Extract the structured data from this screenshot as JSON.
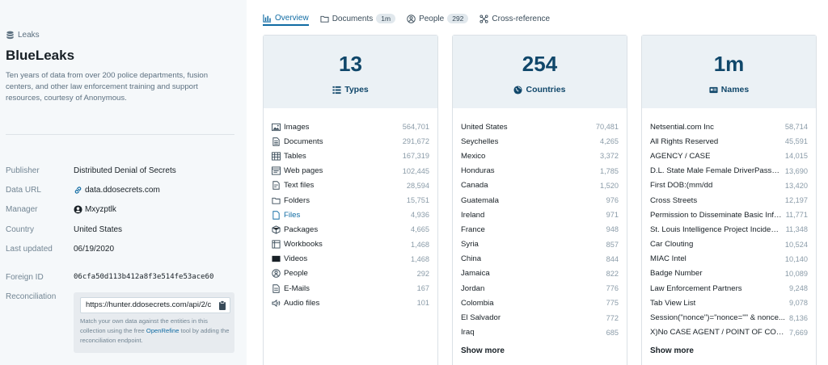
{
  "sidebar": {
    "breadcrumb": "Leaks",
    "title": "BlueLeaks",
    "description": "Ten years of data from over 200 police departments, fusion centers, and other law enforcement training and support resources, courtesy of Anonymous.",
    "meta": {
      "publisher_label": "Publisher",
      "publisher_value": "Distributed Denial of Secrets",
      "url_label": "Data URL",
      "url_value": "data.ddosecrets.com",
      "manager_label": "Manager",
      "manager_value": "Mxyzptlk",
      "country_label": "Country",
      "country_value": "United States",
      "updated_label": "Last updated",
      "updated_value": "06/19/2020",
      "foreign_label": "Foreign ID",
      "foreign_value": "06cfa50d113b412a8f3e514fe53ace60",
      "recon_label": "Reconciliation"
    },
    "reconciliation": {
      "input_value": "https://hunter.ddosecrets.com/api/2/c",
      "help_pre": "Match your own data against the entities in this collection using the free ",
      "help_link": "OpenRefine",
      "help_post": " tool by adding the reconciliation endpoint."
    }
  },
  "tabs": [
    {
      "label": "Overview",
      "icon": "bar-chart-icon"
    },
    {
      "label": "Documents",
      "count": "1m",
      "icon": "folder-icon"
    },
    {
      "label": "People",
      "count": "292",
      "icon": "person-icon"
    },
    {
      "label": "Cross-reference",
      "icon": "graph-icon"
    }
  ],
  "cards": {
    "types": {
      "number": "13",
      "label": "Types",
      "rows": [
        {
          "label": "Images",
          "value": "564,701",
          "icon": "image-icon"
        },
        {
          "label": "Documents",
          "value": "291,672",
          "icon": "document-icon"
        },
        {
          "label": "Tables",
          "value": "167,319",
          "icon": "table-icon"
        },
        {
          "label": "Web pages",
          "value": "102,445",
          "icon": "web-page-icon"
        },
        {
          "label": "Text files",
          "value": "28,594",
          "icon": "text-file-icon"
        },
        {
          "label": "Folders",
          "value": "15,751",
          "icon": "folder-icon"
        },
        {
          "label": "Files",
          "value": "4,936",
          "icon": "file-icon"
        },
        {
          "label": "Packages",
          "value": "4,665",
          "icon": "package-icon"
        },
        {
          "label": "Workbooks",
          "value": "1,468",
          "icon": "workbook-icon"
        },
        {
          "label": "Videos",
          "value": "1,468",
          "icon": "video-icon"
        },
        {
          "label": "People",
          "value": "292",
          "icon": "person-icon"
        },
        {
          "label": "E-Mails",
          "value": "167",
          "icon": "email-icon"
        },
        {
          "label": "Audio files",
          "value": "101",
          "icon": "audio-icon"
        }
      ]
    },
    "countries": {
      "number": "254",
      "label": "Countries",
      "more": "Show more",
      "rows": [
        {
          "label": "United States",
          "value": "70,481"
        },
        {
          "label": "Seychelles",
          "value": "4,265"
        },
        {
          "label": "Mexico",
          "value": "3,372"
        },
        {
          "label": "Honduras",
          "value": "1,785"
        },
        {
          "label": "Canada",
          "value": "1,520"
        },
        {
          "label": "Guatemala",
          "value": "976"
        },
        {
          "label": "Ireland",
          "value": "971"
        },
        {
          "label": "France",
          "value": "948"
        },
        {
          "label": "Syria",
          "value": "857"
        },
        {
          "label": "China",
          "value": "844"
        },
        {
          "label": "Jamaica",
          "value": "822"
        },
        {
          "label": "Jordan",
          "value": "776"
        },
        {
          "label": "Colombia",
          "value": "775"
        },
        {
          "label": "El Salvador",
          "value": "772"
        },
        {
          "label": "Iraq",
          "value": "685"
        }
      ]
    },
    "names": {
      "number": "1m",
      "label": "Names",
      "more": "Show more",
      "rows": [
        {
          "label": "Netsential.com Inc",
          "value": "58,714"
        },
        {
          "label": "All Rights Reserved",
          "value": "45,591"
        },
        {
          "label": "AGENCY / CASE",
          "value": "14,015"
        },
        {
          "label": "D.L. State Male Female DriverPassen...",
          "value": "13,690"
        },
        {
          "label": "First DOB:(mm/dd",
          "value": "13,420"
        },
        {
          "label": "Cross Streets",
          "value": "12,197"
        },
        {
          "label": "Permission to Disseminate Basic Infor...",
          "value": "11,771"
        },
        {
          "label": "St. Louis Intelligence Project Incident ...",
          "value": "11,348"
        },
        {
          "label": "Car Clouting",
          "value": "10,524"
        },
        {
          "label": "MIAC Intel",
          "value": "10,140"
        },
        {
          "label": "Badge Number",
          "value": "10,089"
        },
        {
          "label": "Law Enforcement Partners",
          "value": "9,248"
        },
        {
          "label": "Tab View List",
          "value": "9,078"
        },
        {
          "label": "Session(\"nonce\")=\"nonce=\"\" & nonce...",
          "value": "8,136"
        },
        {
          "label": "X)No CASE AGENT / POINT OF CONTA...",
          "value": "7,669"
        }
      ]
    }
  },
  "colors": {
    "accent": "#106ba3",
    "heading": "#10476a",
    "card_head": "#ebf1f5",
    "sidebar_bg": "#f5f8fa"
  }
}
